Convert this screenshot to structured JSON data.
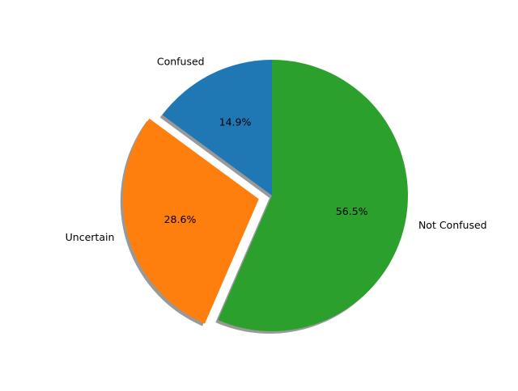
{
  "chart_data": {
    "type": "pie",
    "title": "",
    "slices": [
      {
        "label": "Confused",
        "value": 14.9,
        "pct_label": "14.9%",
        "color": "#1f77b4",
        "exploded": false
      },
      {
        "label": "Uncertain",
        "value": 28.6,
        "pct_label": "28.6%",
        "color": "#ff7f0e",
        "exploded": true
      },
      {
        "label": "Not Confused",
        "value": 56.5,
        "pct_label": "56.5%",
        "color": "#2ca02c",
        "exploded": false
      }
    ],
    "start_angle": 90,
    "direction": "counterclockwise",
    "shadow": true,
    "legend": "none"
  }
}
